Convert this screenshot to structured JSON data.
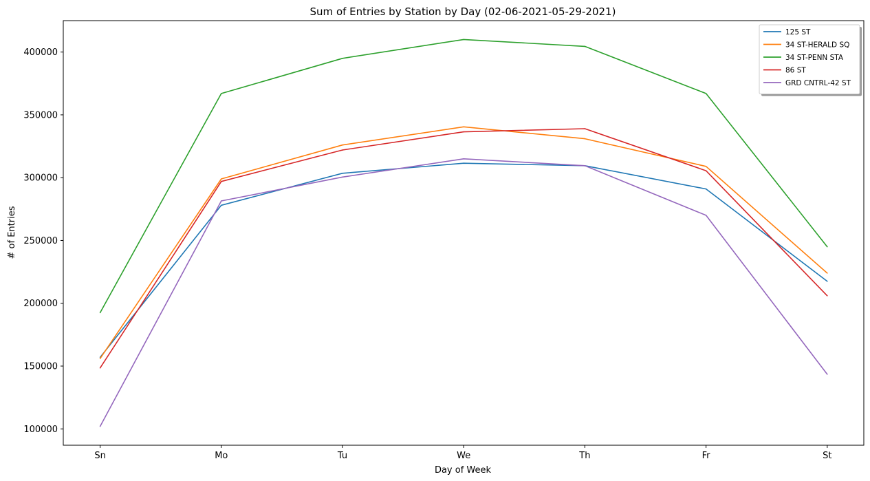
{
  "chart_data": {
    "type": "line",
    "title": "Sum of Entries by Station by Day (02-06-2021-05-29-2021)",
    "xlabel": "Day of Week",
    "ylabel": "# of Entries",
    "categories": [
      "Sn",
      "Mo",
      "Tu",
      "We",
      "Th",
      "Fr",
      "St"
    ],
    "ylim": [
      87000,
      425000
    ],
    "yticks": [
      100000,
      150000,
      200000,
      250000,
      300000,
      350000,
      400000
    ],
    "ytick_labels": [
      "100000",
      "150000",
      "200000",
      "250000",
      "300000",
      "350000",
      "400000"
    ],
    "grid": false,
    "legend_position": "top-right",
    "series": [
      {
        "name": "125 ST",
        "color": "#1f77b4",
        "values": [
          157000,
          278000,
          303500,
          311500,
          309500,
          291000,
          217500
        ]
      },
      {
        "name": "34 ST-HERALD SQ",
        "color": "#ff7f0e",
        "values": [
          156000,
          299000,
          326000,
          340500,
          331000,
          309000,
          224000
        ]
      },
      {
        "name": "34 ST-PENN STA",
        "color": "#2ca02c",
        "values": [
          192500,
          367000,
          395000,
          410000,
          404500,
          367000,
          245000
        ]
      },
      {
        "name": "86 ST",
        "color": "#d62728",
        "values": [
          148500,
          297000,
          322000,
          336500,
          339000,
          305500,
          206000
        ]
      },
      {
        "name": "GRD CNTRL-42 ST",
        "color": "#9467bd",
        "values": [
          102000,
          281500,
          300500,
          315000,
          309500,
          270000,
          143500
        ]
      }
    ]
  }
}
